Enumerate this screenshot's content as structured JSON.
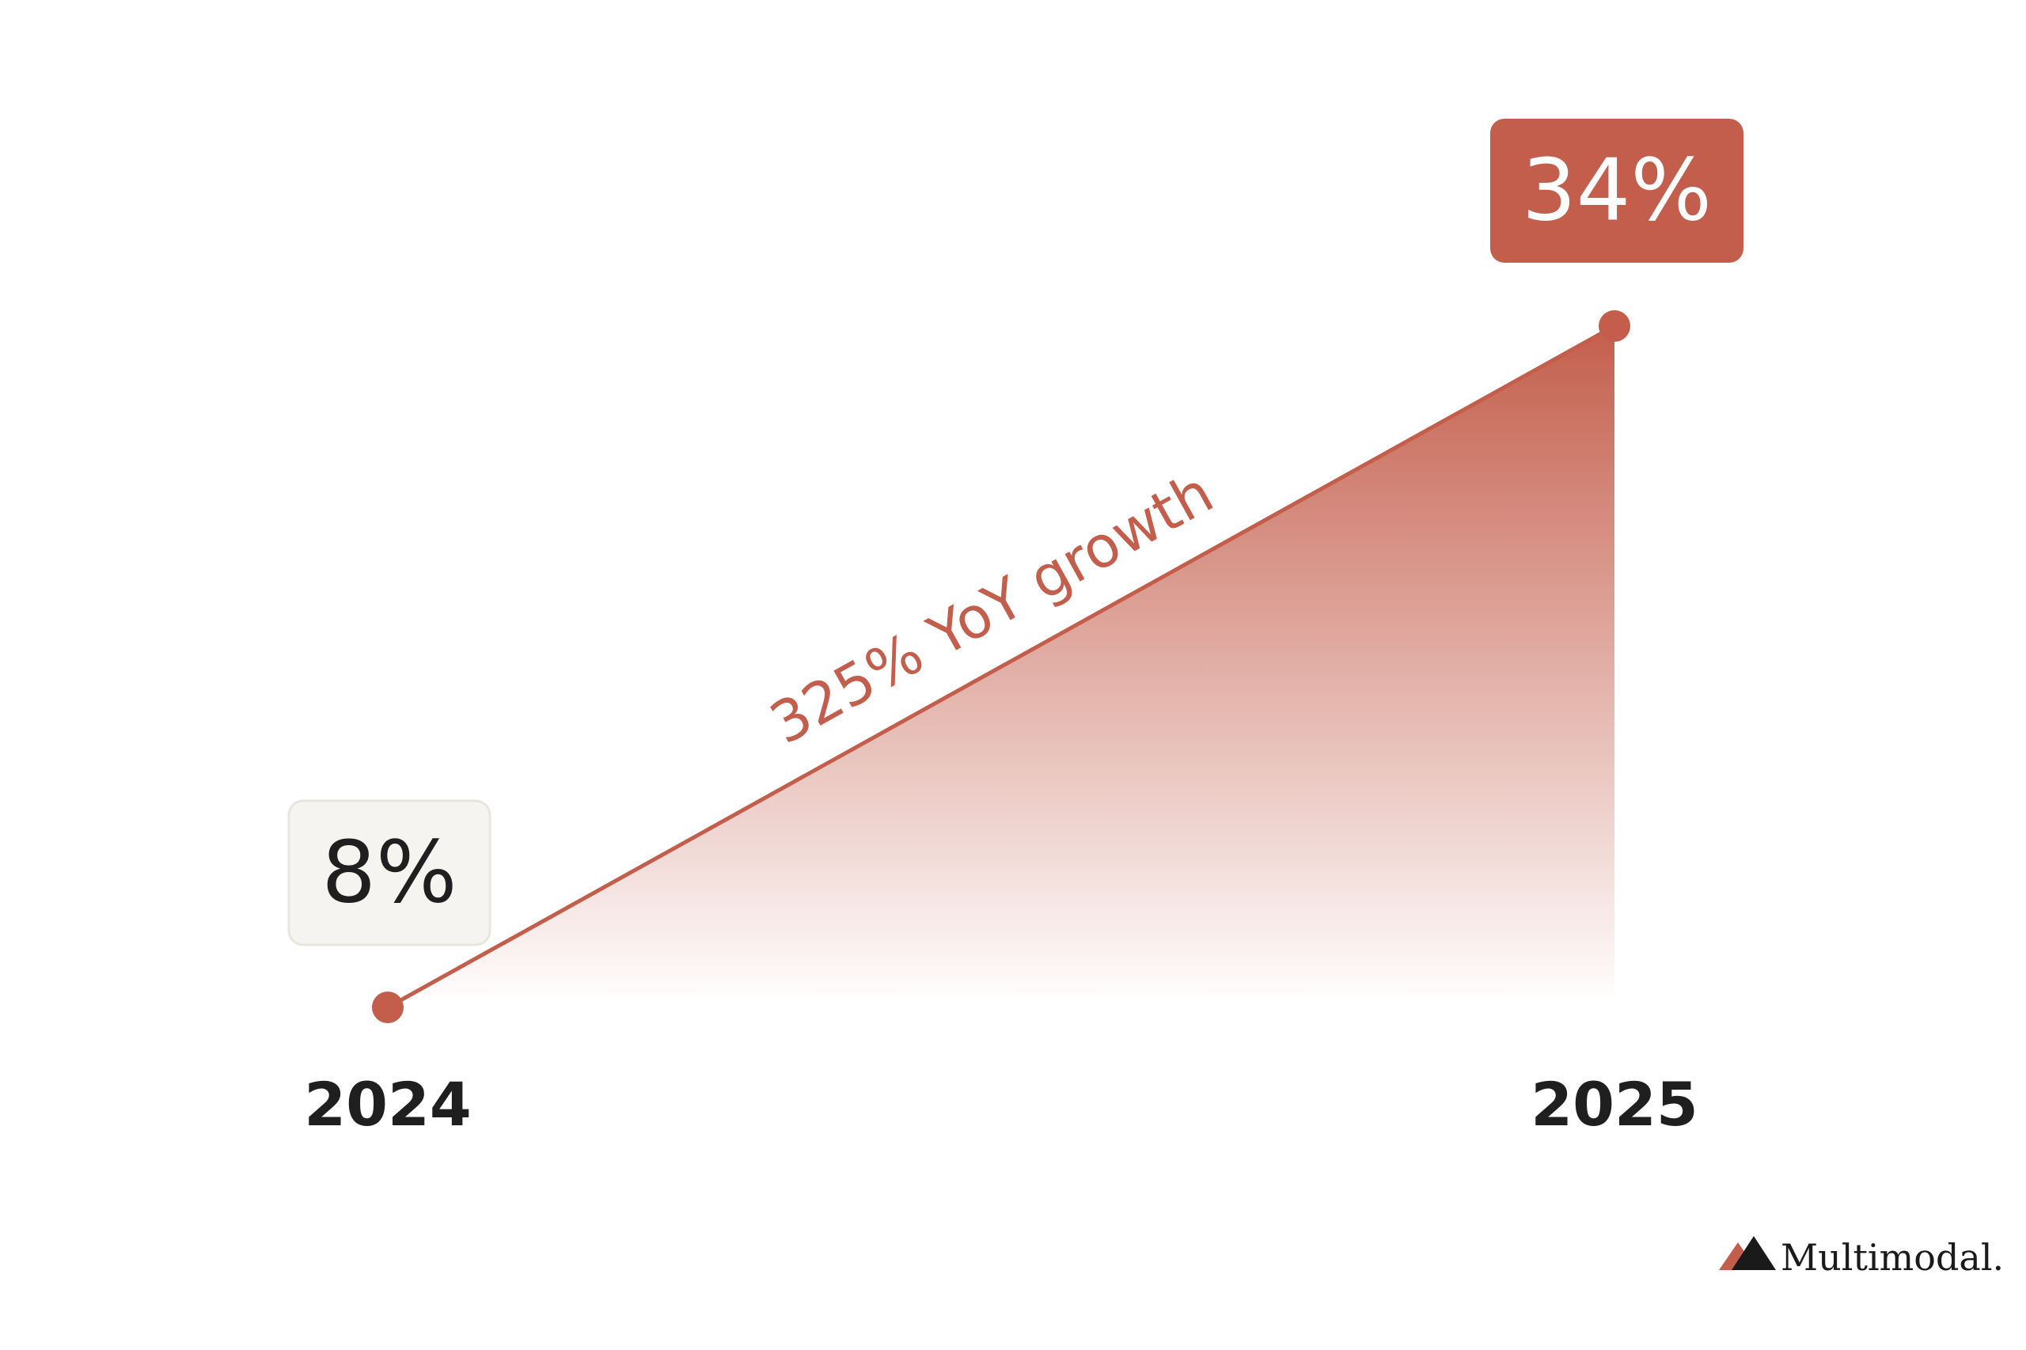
{
  "chart_data": {
    "type": "area",
    "x": [
      "2024",
      "2025"
    ],
    "values": [
      8,
      34
    ],
    "value_labels": [
      "8%",
      "34%"
    ],
    "ylim": [
      8,
      34
    ],
    "annotation": "325% YoY growth",
    "grid": false,
    "legend": "none",
    "colors": {
      "accent": "#c45e4c",
      "light_box_fill": "#f5f4f0",
      "light_box_border": "#e6e6dc",
      "text": "#1f1f1f"
    }
  },
  "brand": {
    "name": "Multimodal.",
    "logo_icon": "mountain-logo-icon"
  }
}
